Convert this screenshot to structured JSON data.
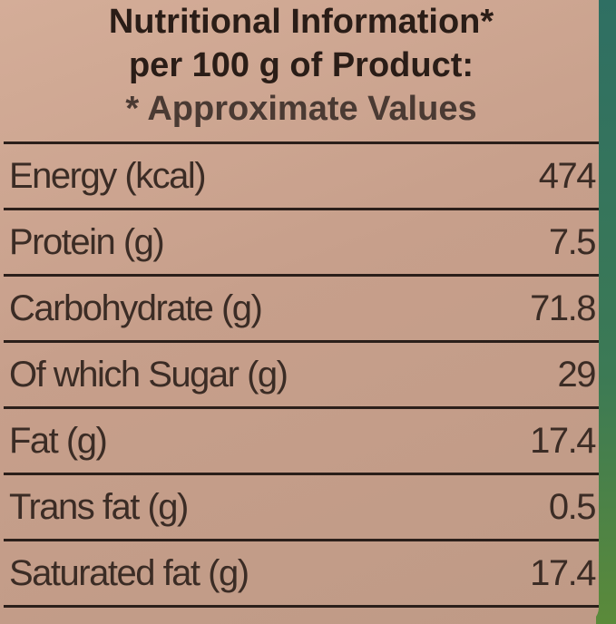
{
  "header": {
    "title": "Nutritional Information*",
    "subtitle": "per 100 g of Product:",
    "note": "* Approximate Values"
  },
  "table": {
    "rows": [
      [
        "Energy (kcal)",
        474
      ],
      [
        "Protein (g)",
        7.5
      ],
      [
        "Carbohydrate (g)",
        71.8
      ],
      [
        "Of which Sugar (g)",
        29
      ],
      [
        "Fat (g)",
        17.4
      ],
      [
        "Trans fat (g)",
        0.5
      ],
      [
        "Saturated fat (g)",
        17.4
      ]
    ]
  }
}
